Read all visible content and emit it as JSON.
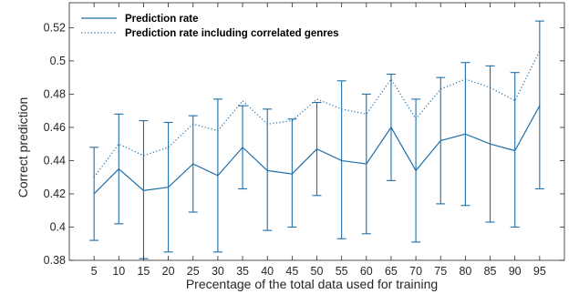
{
  "chart_data": {
    "type": "line",
    "title": "",
    "xlabel": "Precentage of the total data used for training",
    "ylabel": "Correct prediction",
    "x": [
      5,
      10,
      15,
      20,
      25,
      30,
      35,
      40,
      45,
      50,
      55,
      60,
      65,
      70,
      75,
      80,
      85,
      90,
      95
    ],
    "xlim": [
      0,
      100
    ],
    "ylim": [
      0.38,
      0.535
    ],
    "yticks": [
      0.38,
      0.4,
      0.42,
      0.44,
      0.46,
      0.48,
      0.5,
      0.52
    ],
    "ytick_labels": [
      "0.38",
      "0.4",
      "0.42",
      "0.44",
      "0.46",
      "0.48",
      "0.5",
      "0.52"
    ],
    "grid": false,
    "legend_position": "top-left",
    "series": [
      {
        "name": "Prediction rate",
        "style": "solid",
        "color": "#1f6fa8",
        "values": [
          0.42,
          0.435,
          0.422,
          0.424,
          0.438,
          0.431,
          0.448,
          0.434,
          0.432,
          0.447,
          0.44,
          0.438,
          0.46,
          0.434,
          0.452,
          0.456,
          0.45,
          0.446,
          0.473
        ],
        "error_upper": [
          0.448,
          0.468,
          0.464,
          0.463,
          0.467,
          0.477,
          0.473,
          0.471,
          0.465,
          0.475,
          0.488,
          0.48,
          0.492,
          0.477,
          0.49,
          0.499,
          0.497,
          0.493,
          0.524
        ],
        "error_lower": [
          0.392,
          0.402,
          0.381,
          0.385,
          0.409,
          0.385,
          0.423,
          0.398,
          0.4,
          0.419,
          0.393,
          0.396,
          0.428,
          0.391,
          0.414,
          0.413,
          0.403,
          0.4,
          0.423
        ]
      },
      {
        "name": "Prediction rate including correlated genres",
        "style": "dotted",
        "color": "#1f6fa8",
        "values": [
          0.43,
          0.45,
          0.443,
          0.448,
          0.462,
          0.458,
          0.476,
          0.462,
          0.464,
          0.477,
          0.471,
          0.468,
          0.489,
          0.465,
          0.483,
          0.489,
          0.484,
          0.476,
          0.506
        ]
      }
    ]
  }
}
